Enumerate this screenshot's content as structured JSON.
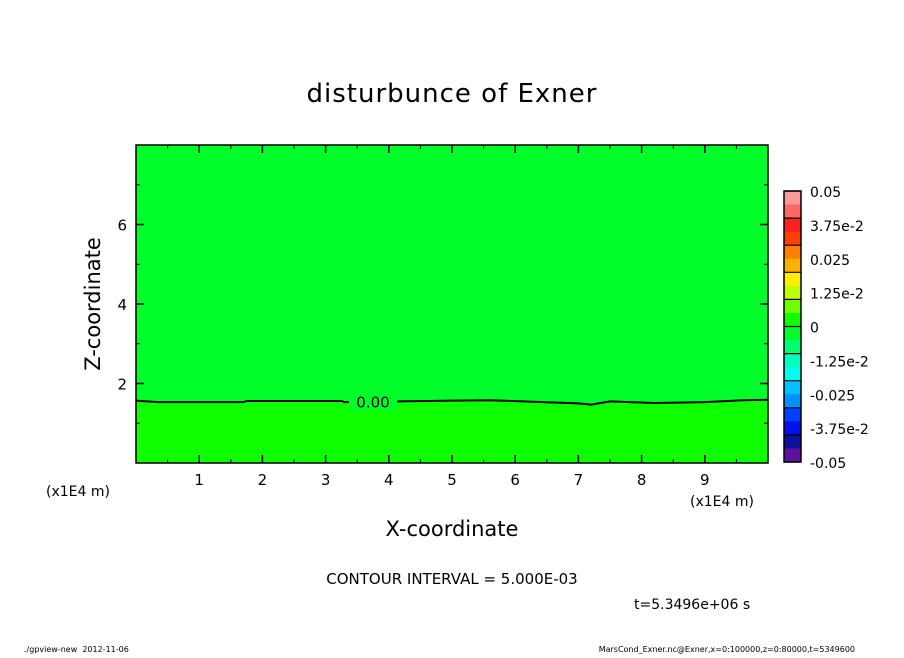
{
  "chart_data": {
    "type": "contour",
    "title": "disturbunce of Exner",
    "xlabel": "X-coordinate",
    "ylabel": "Z-coordinate",
    "x_unit_label": "(x1E4 m)",
    "y_unit_label": "(x1E4 m)",
    "xlim": [
      0,
      10
    ],
    "ylim": [
      0,
      8
    ],
    "x_ticks": [
      "1",
      "2",
      "3",
      "4",
      "5",
      "6",
      "7",
      "8",
      "9"
    ],
    "y_ticks": [
      "2",
      "4",
      "6"
    ],
    "fill_above_color": "#00ff2a",
    "fill_below_color": "#10ff00",
    "contour_0": {
      "label": "0.00",
      "label_x": 3.75,
      "points": [
        [
          0,
          1.57
        ],
        [
          0.35,
          1.53
        ],
        [
          1.7,
          1.53
        ],
        [
          1.75,
          1.56
        ],
        [
          3.25,
          1.56
        ],
        [
          3.3,
          1.53
        ],
        [
          5.0,
          1.57
        ],
        [
          5.6,
          1.58
        ],
        [
          7.0,
          1.5
        ],
        [
          7.2,
          1.47
        ],
        [
          7.5,
          1.55
        ],
        [
          8.2,
          1.51
        ],
        [
          9.0,
          1.53
        ],
        [
          9.6,
          1.58
        ],
        [
          10,
          1.59
        ]
      ]
    },
    "colorbar": {
      "range": [
        -0.05,
        0.05
      ],
      "tick_labels": [
        "0.05",
        "3.75e-2",
        "0.025",
        "1.25e-2",
        "0",
        "-1.25e-2",
        "-0.025",
        "-3.75e-2",
        "-0.05"
      ],
      "band_colors_top_to_bottom": [
        "#ff9999",
        "#ff6666",
        "#ff2020",
        "#ff4000",
        "#ff8000",
        "#ffb000",
        "#ffee00",
        "#c0ff00",
        "#70ff00",
        "#10ff00",
        "#00ff2a",
        "#00ff70",
        "#00ffb8",
        "#00ffee",
        "#00c0ff",
        "#0090ff",
        "#0040ff",
        "#0010ee",
        "#1010a0",
        "#6010a0"
      ]
    },
    "contour_interval": "CONTOUR INTERVAL = 5.000E-03",
    "time_label": "t=5.3496e+06 s"
  },
  "footer": {
    "left": "./gpview-new  2012-11-06",
    "right": "MarsCond_Exner.nc@Exner,x=0:100000,z=0:80000,t=5349600"
  }
}
